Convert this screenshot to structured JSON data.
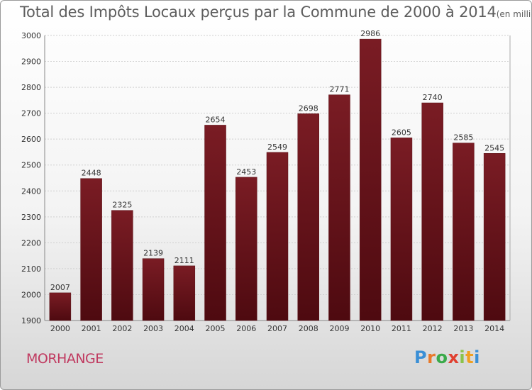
{
  "title": "Total des Impôts Locaux perçus par la Commune de 2000 à 2014",
  "unit": "(en milliers d'€)",
  "commune": "MORHANGE",
  "logo": {
    "letters": [
      "P",
      "r",
      "o",
      "x",
      "i",
      "t",
      "i"
    ],
    "colors": [
      "#3a8fd6",
      "#e8792a",
      "#3aaa4a",
      "#e04030",
      "#8bc34a",
      "#f0a020",
      "#3a8fd6"
    ]
  },
  "colors": {
    "bar": "#7a1c24",
    "bar_dark": "#4e0a10",
    "grid": "#d0d0d0"
  },
  "chart_data": {
    "type": "bar",
    "title": "Total des Impôts Locaux perçus par la Commune de 2000 à 2014",
    "xlabel": "",
    "ylabel": "en milliers d'€",
    "categories": [
      "2000",
      "2001",
      "2002",
      "2003",
      "2004",
      "2005",
      "2006",
      "2007",
      "2008",
      "2009",
      "2010",
      "2011",
      "2012",
      "2013",
      "2014"
    ],
    "values": [
      2007,
      2448,
      2325,
      2139,
      2111,
      2654,
      2453,
      2549,
      2698,
      2771,
      2986,
      2605,
      2740,
      2585,
      2545
    ],
    "ylim": [
      1900,
      3000
    ],
    "yticks": [
      1900,
      2000,
      2100,
      2200,
      2300,
      2400,
      2500,
      2600,
      2700,
      2800,
      2900,
      3000
    ],
    "grid": true
  }
}
